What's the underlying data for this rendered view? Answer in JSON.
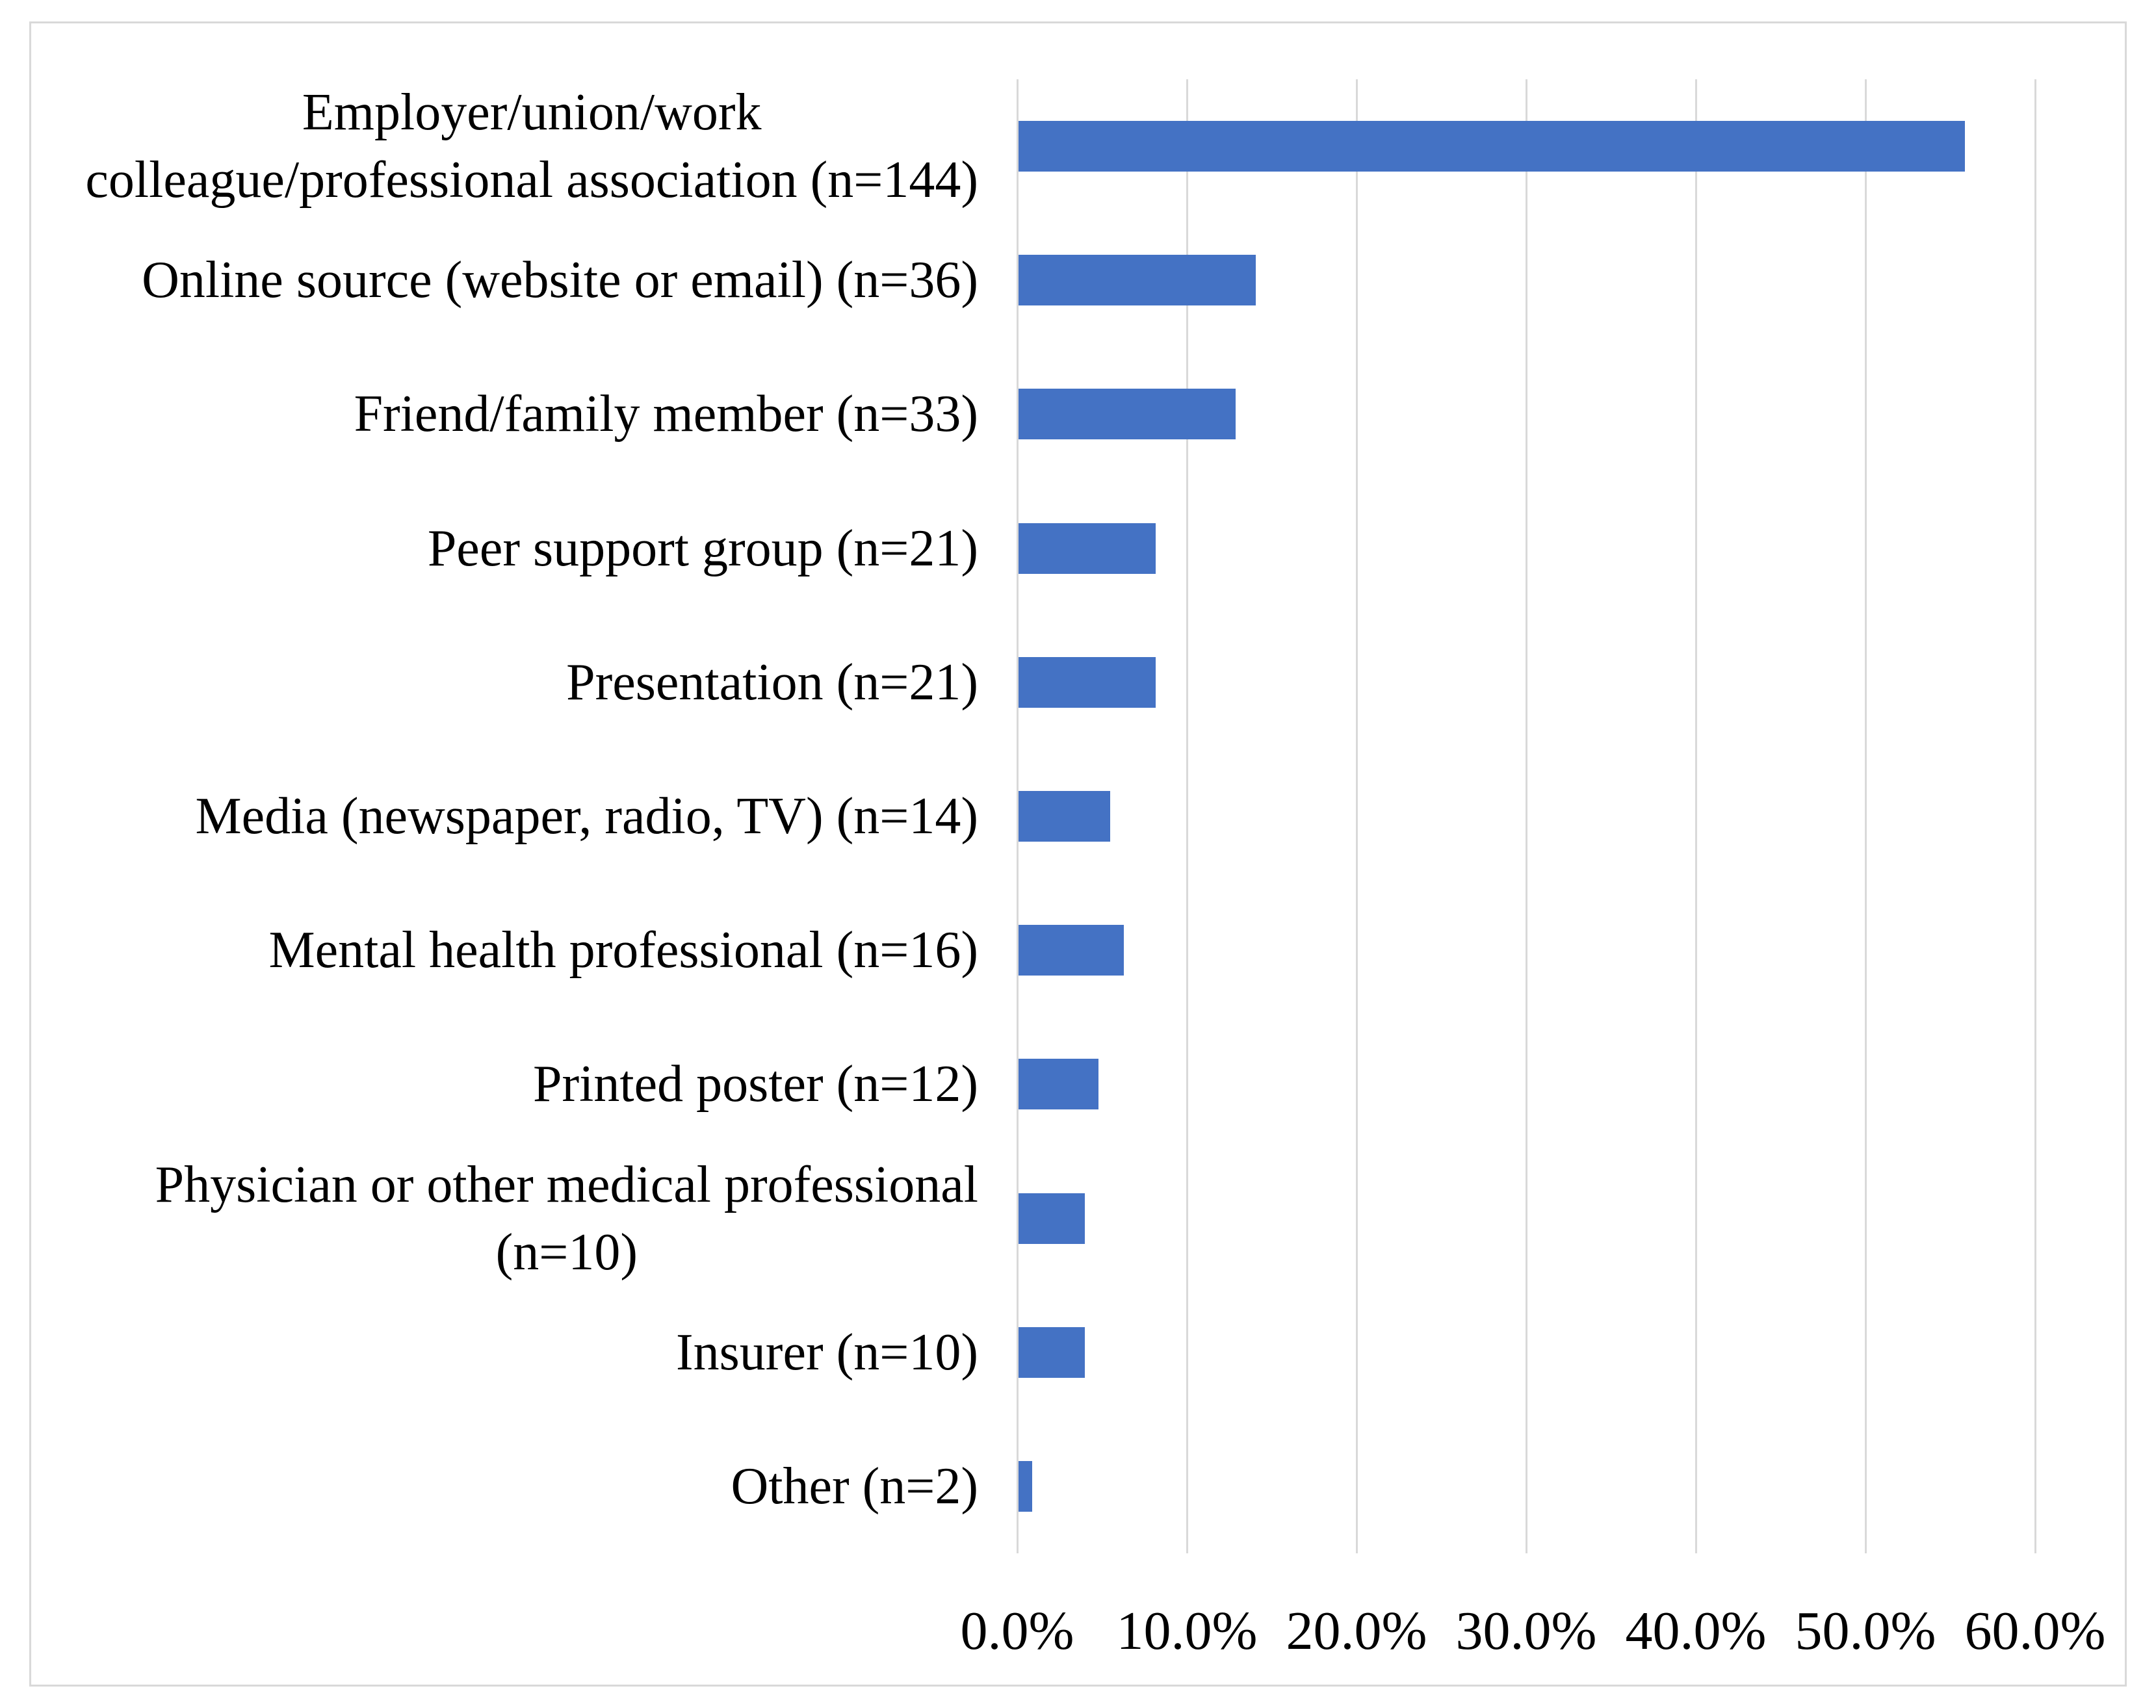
{
  "chart_data": {
    "type": "bar",
    "orientation": "horizontal",
    "title": "",
    "categories": [
      {
        "label": "Employer/union/work colleague/professional association (n=144)",
        "lines": [
          "Employer/union/work",
          "colleague/professional association (n=144)"
        ],
        "n": 144
      },
      {
        "label": "Online source (website or email) (n=36)",
        "lines": [
          "Online source (website or email) (n=36)"
        ],
        "n": 36
      },
      {
        "label": "Friend/family member (n=33)",
        "lines": [
          "Friend/family member (n=33)"
        ],
        "n": 33
      },
      {
        "label": "Peer support group (n=21)",
        "lines": [
          "Peer support group (n=21)"
        ],
        "n": 21
      },
      {
        "label": "Presentation (n=21)",
        "lines": [
          "Presentation (n=21)"
        ],
        "n": 21
      },
      {
        "label": "Media (newspaper, radio, TV) (n=14)",
        "lines": [
          "Media (newspaper, radio, TV) (n=14)"
        ],
        "n": 14
      },
      {
        "label": "Mental health professional (n=16)",
        "lines": [
          "Mental health professional (n=16)"
        ],
        "n": 16
      },
      {
        "label": "Printed poster (n=12)",
        "lines": [
          "Printed poster (n=12)"
        ],
        "n": 12
      },
      {
        "label": "Physician or other medical professional (n=10)",
        "lines": [
          "Physician or other medical professional",
          "(n=10)"
        ],
        "n": 10
      },
      {
        "label": "Insurer (n=10)",
        "lines": [
          "Insurer (n=10)"
        ],
        "n": 10
      },
      {
        "label": "Other (n=2)",
        "lines": [
          "Other (n=2)"
        ],
        "n": 2
      }
    ],
    "values": [
      55.8,
      14.0,
      12.8,
      8.1,
      8.1,
      5.4,
      6.2,
      4.7,
      3.9,
      3.9,
      0.8
    ],
    "unit": "%",
    "xlabel": "",
    "ylabel": "",
    "x_tick_labels": [
      "0.0%",
      "10.0%",
      "20.0%",
      "30.0%",
      "40.0%",
      "50.0%",
      "60.0%"
    ],
    "xlim": [
      0,
      60
    ],
    "x_tick_step": 10,
    "grid": "vertical",
    "legend": "none",
    "colors": {
      "bar": "#4472C4",
      "gridline": "#D9D9D9",
      "frame_border": "#D9D9D9",
      "text": "#000000",
      "background": "#FFFFFF"
    }
  }
}
